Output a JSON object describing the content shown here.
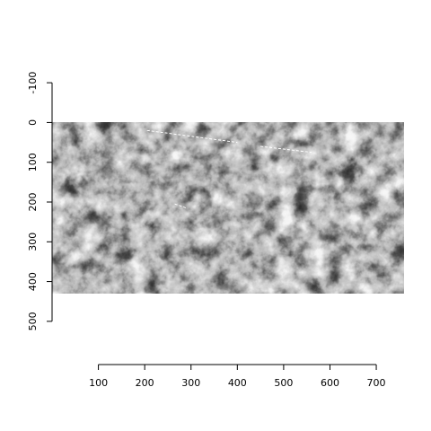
{
  "chart_data": {
    "type": "heatmap",
    "title": "",
    "xlabel": "",
    "ylabel": "",
    "xlim": [
      0,
      760
    ],
    "ylim": [
      -150,
      550
    ],
    "y_reversed": true,
    "image_extent": {
      "x": [
        0,
        760
      ],
      "y": [
        0,
        430
      ]
    },
    "colormap": "grayscale",
    "description_values": {
      "content": "aerial canopy image of tree crowns"
    },
    "x_ticks": [
      100,
      200,
      300,
      400,
      500,
      600,
      700
    ],
    "x_tick_labels": [
      "100",
      "200",
      "300",
      "400",
      "500",
      "600",
      "700"
    ],
    "y_ticks": [
      -100,
      0,
      100,
      200,
      300,
      400,
      500
    ],
    "y_tick_labels": [
      "-100",
      "0",
      "100",
      "200",
      "300",
      "400",
      "500"
    ],
    "overlay_lines": [
      {
        "x": [
          205,
          400
        ],
        "y": [
          20,
          50
        ],
        "color": "#ffffff"
      },
      {
        "x": [
          450,
          560
        ],
        "y": [
          60,
          75
        ],
        "color": "#ffffff"
      },
      {
        "x": [
          265,
          290
        ],
        "y": [
          205,
          215
        ],
        "color": "#ffffff"
      }
    ],
    "grid": false
  }
}
